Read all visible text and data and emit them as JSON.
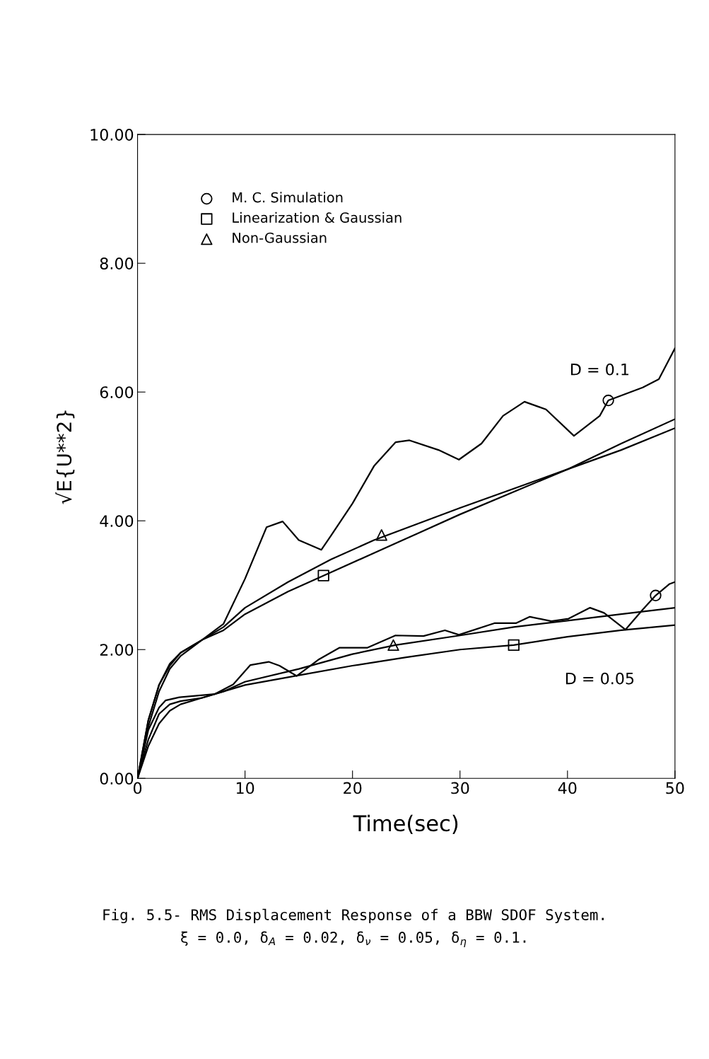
{
  "chart_data": {
    "type": "line",
    "xlabel": "Time(sec)",
    "ylabel": "√E{U**2}",
    "xlim": [
      0,
      50
    ],
    "xticks": [
      0,
      10,
      20,
      30,
      40,
      50
    ],
    "ylim": [
      0,
      10
    ],
    "yticks": [
      {
        "value": 0,
        "label": "0.00"
      },
      {
        "value": 2,
        "label": "2.00"
      },
      {
        "value": 4,
        "label": "4.00"
      },
      {
        "value": 6,
        "label": "6.00"
      },
      {
        "value": 8,
        "label": "8.00"
      },
      {
        "value": 10,
        "label": "10.00"
      }
    ],
    "grid": false,
    "legend": "top left",
    "line_style": "solid",
    "series": [
      {
        "color": "#000000",
        "x": [
          0,
          1,
          2,
          3,
          4,
          6,
          8,
          10,
          12,
          13.5,
          15,
          17.1,
          18,
          20,
          22,
          24,
          25.3,
          28,
          29.9,
          32,
          34,
          36,
          38,
          40.6,
          43,
          43.8,
          47,
          48.5,
          50
        ],
        "values": [
          0,
          0.9,
          1.45,
          1.78,
          1.95,
          2.15,
          2.4,
          3.1,
          3.9,
          3.99,
          3.7,
          3.55,
          3.77,
          4.27,
          4.85,
          5.22,
          5.25,
          5.1,
          4.95,
          5.2,
          5.63,
          5.85,
          5.73,
          5.32,
          5.63,
          5.87,
          6.07,
          6.2,
          6.68
        ]
      },
      {
        "color": "#000000",
        "x": [
          0,
          1,
          2,
          3,
          4,
          6,
          8,
          10,
          14,
          18,
          22,
          26,
          30,
          35,
          40,
          45,
          50
        ],
        "values": [
          0,
          0.8,
          1.35,
          1.7,
          1.9,
          2.15,
          2.3,
          2.55,
          2.9,
          3.2,
          3.5,
          3.8,
          4.1,
          4.45,
          4.8,
          5.2,
          5.58
        ]
      },
      {
        "color": "#000000",
        "x": [
          0,
          1,
          2,
          3,
          4,
          6,
          8,
          10,
          14,
          18,
          22,
          26,
          30,
          35,
          40,
          45,
          50
        ],
        "values": [
          0,
          0.9,
          1.45,
          1.75,
          1.95,
          2.15,
          2.35,
          2.65,
          3.05,
          3.4,
          3.7,
          3.95,
          4.2,
          4.5,
          4.8,
          5.1,
          5.44
        ]
      },
      {
        "color": "#000000",
        "x": [
          0,
          1,
          2,
          2.6,
          3.9,
          7.2,
          8.9,
          10.5,
          12.2,
          13.2,
          14.8,
          16.8,
          18.8,
          21.4,
          24,
          26.6,
          28.6,
          29.9,
          33.2,
          35.2,
          36.5,
          38.5,
          40.1,
          42.1,
          43.4,
          45.4,
          47,
          48.2,
          49.5,
          50
        ],
        "values": [
          0,
          0.75,
          1.1,
          1.21,
          1.26,
          1.31,
          1.46,
          1.76,
          1.81,
          1.75,
          1.59,
          1.84,
          2.03,
          2.03,
          2.22,
          2.21,
          2.3,
          2.23,
          2.41,
          2.41,
          2.51,
          2.44,
          2.48,
          2.65,
          2.57,
          2.31,
          2.62,
          2.84,
          3.02,
          3.05
        ]
      },
      {
        "color": "#000000",
        "x": [
          0,
          1,
          2,
          3,
          4,
          6,
          8,
          10,
          15,
          20,
          25,
          30,
          35,
          40,
          45,
          50
        ],
        "values": [
          0,
          0.5,
          0.85,
          1.05,
          1.15,
          1.25,
          1.35,
          1.45,
          1.6,
          1.75,
          1.88,
          2.0,
          2.07,
          2.2,
          2.3,
          2.38
        ]
      },
      {
        "color": "#000000",
        "x": [
          0,
          1,
          2,
          3,
          4,
          6,
          8,
          10,
          15,
          20,
          24,
          30,
          35,
          40,
          45,
          50
        ],
        "values": [
          0,
          0.6,
          1.0,
          1.15,
          1.2,
          1.25,
          1.35,
          1.5,
          1.7,
          1.93,
          2.07,
          2.22,
          2.35,
          2.45,
          2.55,
          2.65
        ]
      },
      {
        "type": "scatter",
        "name": "M. C. Simulation",
        "marker": "circle",
        "color": "#000000",
        "x": [
          43.8,
          48.2
        ],
        "values": [
          5.87,
          2.84
        ]
      },
      {
        "type": "scatter",
        "name": "Linearization & Gaussian",
        "marker": "square",
        "color": "#000000",
        "x": [
          17.3,
          35
        ],
        "values": [
          3.15,
          2.07
        ]
      },
      {
        "type": "scatter",
        "name": "Non-Gaussian",
        "marker": "triangle",
        "color": "#000000",
        "x": [
          22.7,
          23.8
        ],
        "values": [
          3.78,
          2.07
        ]
      }
    ],
    "annotations": [
      "D = 0.1",
      "D = 0.05",
      "Fig. 5.5- RMS Displacement Response of a BBW SDOF System.",
      "ξ = 0.0, δ$_{A}$ = 0.02, δ$_{ν}$ = 0.05, δ$_{η}$ = 0.1."
    ]
  }
}
